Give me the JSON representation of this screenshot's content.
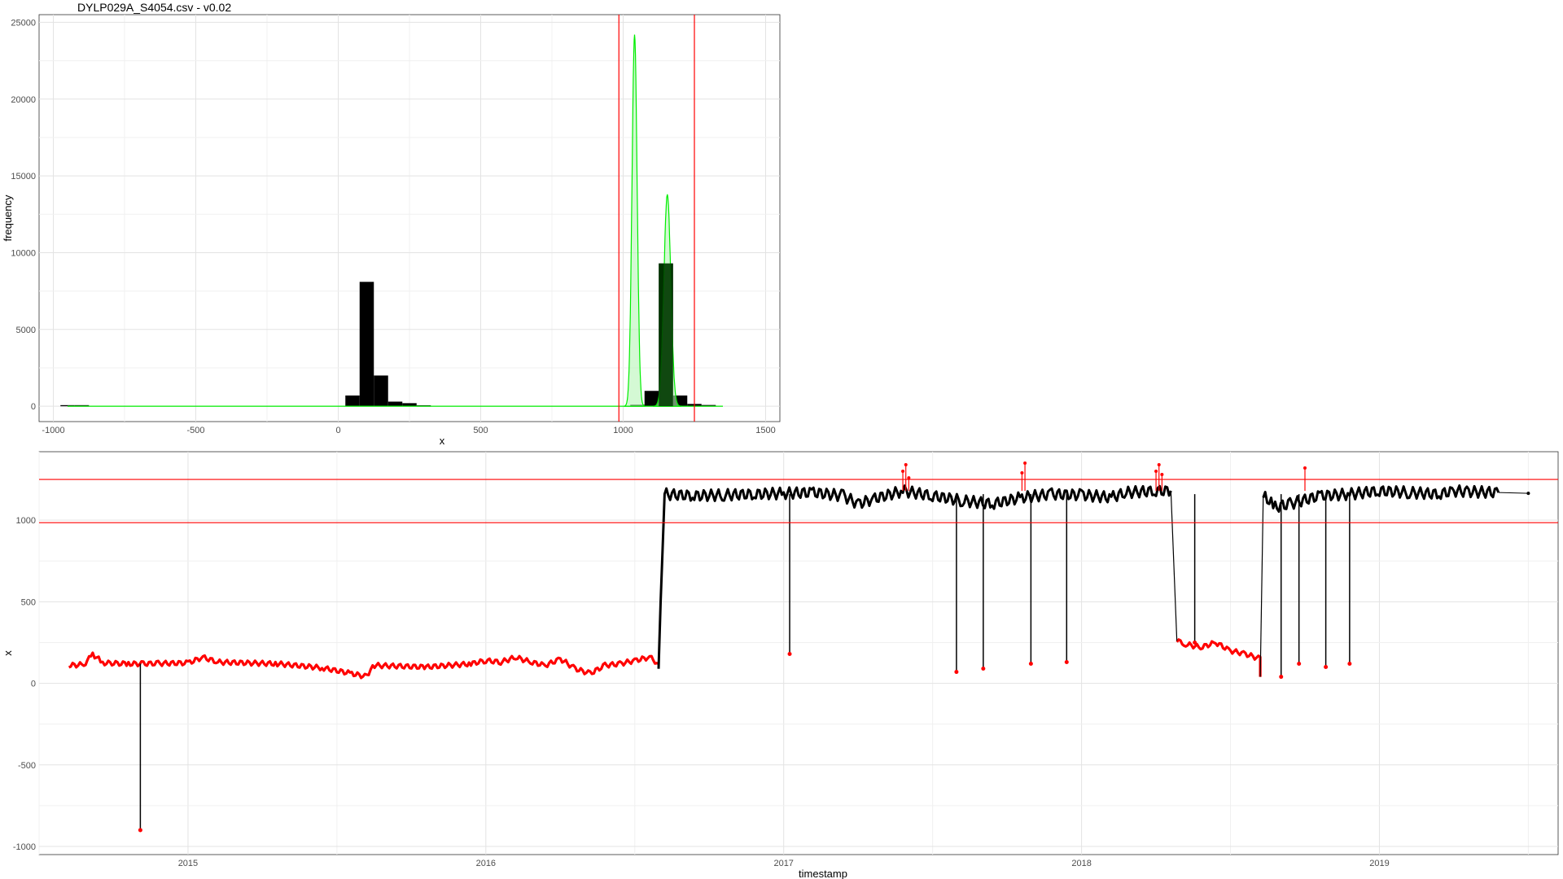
{
  "title": "DYLP029A_S4054.csv - v0.02",
  "colors": {
    "grid": "#e3e3e3",
    "red": "#ff0000",
    "green": "#00ee00",
    "green_fill": "#b8f5b8",
    "bar": "#000000",
    "dark_fill": "#003b00"
  },
  "chart_data": [
    {
      "type": "bar",
      "xlabel": "x",
      "ylabel": "frequency",
      "xlim": [
        -1050,
        1550
      ],
      "ylim": [
        -1000,
        25500
      ],
      "x_ticks": [
        -1000,
        -500,
        0,
        500,
        1000,
        1500
      ],
      "y_ticks": [
        0,
        5000,
        10000,
        15000,
        20000,
        25000
      ],
      "x_tick_labels": [
        "-1000",
        "-500",
        "0",
        "500",
        "1000",
        "1500"
      ],
      "y_tick_labels": [
        "0",
        "5000",
        "10000",
        "15000",
        "20000",
        "25000"
      ],
      "bin_width": 50,
      "bins": [
        {
          "x": -950,
          "count": 70
        },
        {
          "x": -900,
          "count": 70
        },
        {
          "x": 50,
          "count": 700
        },
        {
          "x": 100,
          "count": 8100
        },
        {
          "x": 150,
          "count": 2000
        },
        {
          "x": 200,
          "count": 300
        },
        {
          "x": 250,
          "count": 200
        },
        {
          "x": 300,
          "count": 60
        },
        {
          "x": 1050,
          "count": 100
        },
        {
          "x": 1100,
          "count": 1000
        },
        {
          "x": 1150,
          "count": 9300
        },
        {
          "x": 1200,
          "count": 700
        },
        {
          "x": 1250,
          "count": 150
        },
        {
          "x": 1300,
          "count": 80
        }
      ],
      "density_curves": [
        {
          "name": "",
          "mean": 1040,
          "sd": 9,
          "peak": 24200
        },
        {
          "name": "",
          "mean": 1155,
          "sd": 12,
          "peak": 13800
        }
      ],
      "vlines": [
        985,
        1250
      ]
    },
    {
      "type": "line",
      "xlabel": "timestamp",
      "ylabel": "x",
      "xlim": [
        2014.5,
        2019.6
      ],
      "ylim": [
        -1050,
        1420
      ],
      "x_ticks": [
        2015,
        2016,
        2017,
        2018,
        2019
      ],
      "x_tick_labels": [
        "2015",
        "2016",
        "2017",
        "2018",
        "2019"
      ],
      "y_ticks": [
        -1000,
        -500,
        0,
        500,
        1000
      ],
      "y_tick_labels": [
        "-1000",
        "-500",
        "0",
        "500",
        "1000"
      ],
      "hlines": [
        985,
        1250
      ],
      "segments": [
        {
          "flag": "out",
          "points": [
            [
              2014.6,
              110
            ],
            [
              2014.65,
              115
            ],
            [
              2014.68,
              175
            ],
            [
              2014.72,
              125
            ],
            [
              2014.8,
              120
            ],
            [
              2014.85,
              120
            ],
            [
              2014.9,
              122
            ],
            [
              2015.0,
              125
            ],
            [
              2015.05,
              160
            ],
            [
              2015.1,
              130
            ],
            [
              2015.3,
              120
            ],
            [
              2015.45,
              95
            ],
            [
              2015.55,
              60
            ],
            [
              2015.6,
              40
            ],
            [
              2015.62,
              110
            ],
            [
              2015.8,
              100
            ],
            [
              2015.95,
              120
            ],
            [
              2016.0,
              140
            ],
            [
              2016.05,
              130
            ],
            [
              2016.1,
              160
            ],
            [
              2016.15,
              130
            ],
            [
              2016.2,
              110
            ],
            [
              2016.25,
              150
            ],
            [
              2016.3,
              90
            ],
            [
              2016.35,
              60
            ],
            [
              2016.4,
              110
            ],
            [
              2016.45,
              120
            ],
            [
              2016.5,
              140
            ],
            [
              2016.55,
              160
            ],
            [
              2016.58,
              120
            ]
          ]
        },
        {
          "flag": "in",
          "points": [
            [
              2016.58,
              120
            ],
            [
              2016.6,
              1160
            ],
            [
              2016.7,
              1150
            ],
            [
              2016.8,
              1155
            ],
            [
              2016.9,
              1160
            ],
            [
              2017.0,
              1165
            ],
            [
              2017.1,
              1170
            ],
            [
              2017.2,
              1150
            ],
            [
              2017.25,
              1100
            ],
            [
              2017.3,
              1130
            ],
            [
              2017.4,
              1180
            ],
            [
              2017.5,
              1150
            ],
            [
              2017.6,
              1120
            ],
            [
              2017.7,
              1100
            ],
            [
              2017.8,
              1140
            ],
            [
              2017.9,
              1160
            ],
            [
              2018.0,
              1155
            ],
            [
              2018.1,
              1140
            ],
            [
              2018.15,
              1170
            ],
            [
              2018.25,
              1180
            ],
            [
              2018.3,
              1180
            ]
          ]
        },
        {
          "flag": "out",
          "points": [
            [
              2018.32,
              260
            ],
            [
              2018.35,
              240
            ],
            [
              2018.4,
              220
            ],
            [
              2018.45,
              250
            ],
            [
              2018.5,
              200
            ],
            [
              2018.55,
              180
            ],
            [
              2018.6,
              150
            ],
            [
              2018.6,
              40
            ]
          ]
        },
        {
          "flag": "in",
          "points": [
            [
              2018.61,
              1150
            ],
            [
              2018.65,
              1080
            ],
            [
              2018.7,
              1100
            ],
            [
              2018.8,
              1150
            ],
            [
              2018.9,
              1160
            ],
            [
              2019.0,
              1180
            ],
            [
              2019.1,
              1170
            ],
            [
              2019.2,
              1160
            ],
            [
              2019.25,
              1180
            ],
            [
              2019.3,
              1175
            ],
            [
              2019.4,
              1170
            ]
          ]
        }
      ],
      "spikes": [
        {
          "t": 2014.84,
          "low": -900
        },
        {
          "t": 2017.02,
          "low": 180
        },
        {
          "t": 2017.58,
          "low": 70
        },
        {
          "t": 2017.67,
          "low": 90
        },
        {
          "t": 2017.83,
          "low": 120
        },
        {
          "t": 2017.95,
          "low": 130
        },
        {
          "t": 2018.38,
          "low": 250
        },
        {
          "t": 2018.67,
          "low": 40
        },
        {
          "t": 2018.73,
          "low": 120
        },
        {
          "t": 2018.82,
          "low": 100
        },
        {
          "t": 2018.9,
          "low": 120
        }
      ],
      "spike_flags": [
        {
          "t": 2017.4,
          "values": [
            1300,
            1340,
            1260
          ]
        },
        {
          "t": 2017.8,
          "values": [
            1290,
            1350
          ]
        },
        {
          "t": 2018.25,
          "values": [
            1300,
            1340,
            1280
          ]
        },
        {
          "t": 2018.75,
          "values": [
            1320
          ]
        }
      ]
    }
  ]
}
